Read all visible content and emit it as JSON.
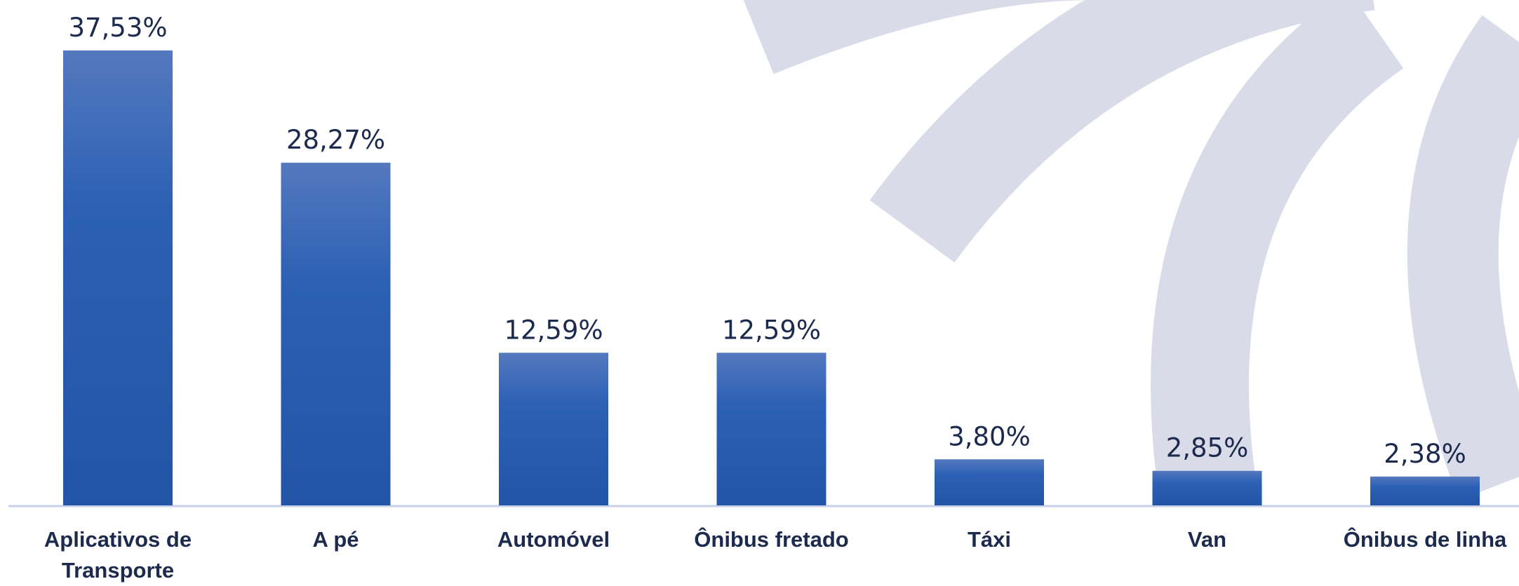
{
  "chart_data": {
    "type": "bar",
    "categories": [
      "Aplicativos de Transporte",
      "A pé",
      "Automóvel",
      "Ônibus fretado",
      "Táxi",
      "Van",
      "Ônibus de linha"
    ],
    "values": [
      37.53,
      28.27,
      12.59,
      12.59,
      3.8,
      2.85,
      2.38
    ],
    "value_labels": [
      "37,53%",
      "28,27%",
      "12,59%",
      "12,59%",
      "3,80%",
      "2,85%",
      "2,38%"
    ],
    "color": "#2a5db0"
  }
}
